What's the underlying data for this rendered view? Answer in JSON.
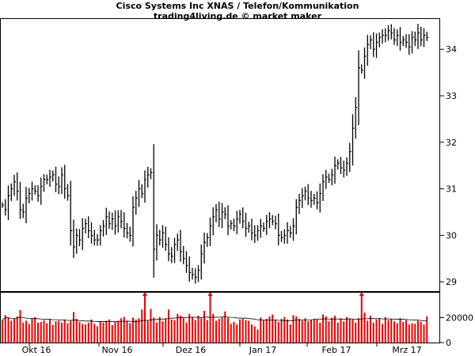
{
  "header": {
    "title": "Cisco Systems Inc XNAS / Telefon/Kommunikation",
    "subtitle": "trading4living.de © market maker"
  },
  "chart_data": [
    {
      "type": "ohlc",
      "title": "Cisco Systems Inc XNAS / Telefon/Kommunikation",
      "ylim": [
        28.8,
        34.65
      ],
      "y_ticks": [
        "29",
        "30",
        "31",
        "32",
        "33",
        "34"
      ],
      "x_ticks": [
        "Okt 16",
        "Nov 16",
        "Dez 16",
        "Jan 17",
        "Feb 17",
        "Mrz 17"
      ],
      "closes": [
        30.65,
        30.55,
        30.85,
        31.0,
        31.15,
        30.95,
        30.55,
        30.5,
        30.8,
        30.9,
        31.0,
        30.95,
        30.85,
        31.05,
        31.2,
        31.2,
        31.25,
        31.3,
        31.1,
        31.05,
        31.3,
        31.0,
        30.85,
        30.1,
        29.75,
        30.0,
        29.9,
        30.15,
        30.25,
        30.1,
        30.0,
        29.9,
        29.9,
        30.1,
        30.2,
        30.4,
        30.25,
        30.35,
        30.2,
        30.4,
        30.3,
        30.15,
        30.05,
        30.0,
        30.6,
        30.8,
        31.0,
        30.9,
        31.2,
        31.3,
        31.35,
        29.7,
        30.0,
        29.9,
        30.05,
        29.8,
        29.6,
        29.55,
        29.8,
        29.9,
        29.65,
        29.5,
        29.35,
        29.2,
        29.15,
        29.1,
        29.25,
        29.6,
        29.85,
        29.95,
        30.2,
        30.4,
        30.55,
        30.35,
        30.5,
        30.45,
        30.2,
        30.25,
        30.2,
        30.35,
        30.45,
        30.3,
        30.15,
        30.2,
        30.05,
        30.0,
        30.1,
        30.2,
        30.15,
        30.3,
        30.35,
        30.3,
        30.25,
        30.0,
        29.95,
        30.0,
        30.1,
        30.05,
        30.2,
        30.6,
        30.75,
        30.85,
        30.95,
        30.8,
        30.75,
        30.8,
        30.7,
        30.9,
        31.15,
        31.25,
        31.2,
        31.3,
        31.5,
        31.55,
        31.45,
        31.4,
        31.55,
        31.8,
        32.3,
        32.75,
        33.6,
        33.55,
        33.85,
        34.1,
        34.2,
        34.0,
        34.15,
        34.25,
        34.3,
        34.3,
        34.4,
        34.35,
        34.2,
        34.3,
        34.15,
        34.2,
        34.15,
        34.05,
        34.25,
        34.2,
        34.35,
        34.2,
        34.3,
        34.25
      ],
      "volume_ylim": [
        0,
        40000
      ],
      "volume_ticks": [
        "0",
        "20000"
      ],
      "volume_values": [
        18000,
        22000,
        20000,
        17500,
        19000,
        21000,
        26000,
        16000,
        17500,
        15000,
        19500,
        20500,
        16000,
        16500,
        18000,
        15500,
        19000,
        14000,
        17000,
        17500,
        16000,
        18500,
        15500,
        17500,
        24500,
        19000,
        16500,
        15000,
        14500,
        16000,
        18500,
        15000,
        13000,
        17000,
        16000,
        17500,
        18500,
        14000,
        16500,
        17500,
        19500,
        20500,
        17000,
        15500,
        20000,
        18500,
        19500,
        26500,
        18000,
        17500,
        27000,
        20000,
        16000,
        20500,
        17000,
        19500,
        26500,
        18500,
        18000,
        23000,
        21500,
        19500,
        16000,
        23000,
        20500,
        18000,
        21500,
        19500,
        25500,
        18000,
        21000,
        23000,
        17500,
        19000,
        20000,
        25000,
        20000,
        15000,
        16500,
        14500,
        18500,
        19000,
        18000,
        17500,
        14500,
        13000,
        10500,
        20000,
        17500,
        19000,
        21000,
        22500,
        18500,
        16500,
        19000,
        20500,
        18500,
        14500,
        22000,
        21000,
        19000,
        17500,
        19500,
        17000,
        18000,
        19000,
        18500,
        16000,
        22500,
        21000,
        17000,
        20000,
        21500,
        16000,
        19500,
        17000,
        20500,
        19000,
        18500,
        16000,
        19500,
        22000,
        24000,
        17500,
        21500,
        16000,
        18500,
        19500,
        15000,
        20500,
        18000,
        19000,
        17000,
        15500,
        19500,
        16500,
        18000,
        14500,
        15500,
        15000,
        17500,
        16500,
        14500,
        21000
      ],
      "volume_capped_bars": [
        "Nov 16",
        "Dez 16",
        "Feb 17"
      ],
      "colors": {
        "price": "#000000",
        "volume": "#e80000",
        "volume_avg": "#000000",
        "axis": "#000000"
      },
      "grid": false
    }
  ]
}
